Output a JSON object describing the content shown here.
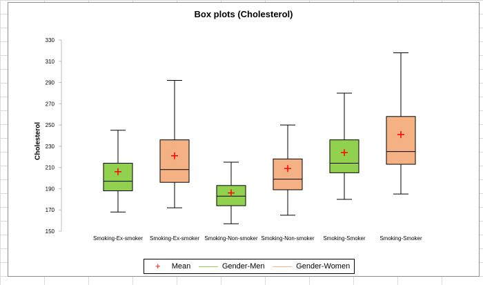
{
  "chart_data": {
    "type": "box",
    "title": "Box plots (Cholesterol)",
    "ylabel": "Cholesterol",
    "ylim": [
      150,
      330
    ],
    "yticks": [
      150,
      170,
      190,
      210,
      230,
      250,
      270,
      290,
      310,
      330
    ],
    "categories": [
      "Smoking-Ex-smoker",
      "Smoking-Ex-smoker",
      "Smoking-Non-smoker",
      "Smoking-Non-smoker",
      "Smoking-Smoker",
      "Smoking-Smoker"
    ],
    "boxes": [
      {
        "category": "Smoking-Ex-smoker",
        "group": "Gender-Men",
        "min": 168,
        "q1": 188,
        "median": 197,
        "q3": 214,
        "max": 245,
        "mean": 206
      },
      {
        "category": "Smoking-Ex-smoker",
        "group": "Gender-Women",
        "min": 172,
        "q1": 196,
        "median": 208,
        "q3": 236,
        "max": 292,
        "mean": 221
      },
      {
        "category": "Smoking-Non-smoker",
        "group": "Gender-Men",
        "min": 157,
        "q1": 174,
        "median": 183,
        "q3": 193,
        "max": 215,
        "mean": 186
      },
      {
        "category": "Smoking-Non-smoker",
        "group": "Gender-Women",
        "min": 165,
        "q1": 189,
        "median": 199,
        "q3": 218,
        "max": 250,
        "mean": 209
      },
      {
        "category": "Smoking-Smoker",
        "group": "Gender-Men",
        "min": 180,
        "q1": 205,
        "median": 214,
        "q3": 236,
        "max": 280,
        "mean": 224
      },
      {
        "category": "Smoking-Smoker",
        "group": "Gender-Women",
        "min": 185,
        "q1": 213,
        "median": 225,
        "q3": 258,
        "max": 318,
        "mean": 241
      }
    ],
    "legend": {
      "position": "bottom",
      "items": [
        {
          "label": "Mean",
          "marker": "plus",
          "color": "#ff0000"
        },
        {
          "label": "Gender-Men",
          "marker": "line",
          "color": "#92d050"
        },
        {
          "label": "Gender-Women",
          "marker": "line",
          "color": "#f4b183"
        }
      ]
    },
    "colors": {
      "Gender-Men": "#92d050",
      "Gender-Women": "#f4b183",
      "mean": "#ff0000",
      "outline": "#000000",
      "axis": "#bfbfbf"
    },
    "grid": false
  }
}
